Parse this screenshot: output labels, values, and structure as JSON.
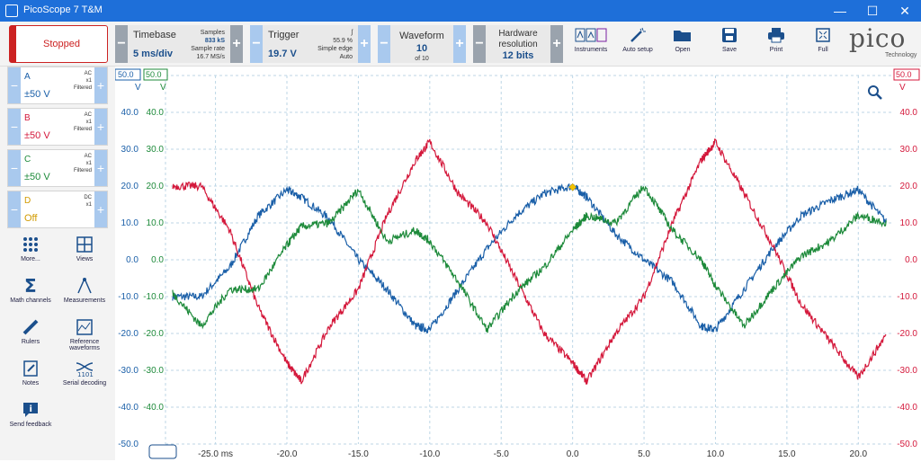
{
  "window": {
    "title": "PicoScope 7 T&M"
  },
  "toolbar": {
    "status_button": "Stopped",
    "timebase": {
      "label": "Timebase",
      "value": "5 ms/div",
      "samples_label": "Samples",
      "samples": "833 kS",
      "rate_label": "Sample rate",
      "rate": "16.7 MS/s"
    },
    "trigger": {
      "label": "Trigger",
      "value": "19.7 V",
      "percent": "55.9 %",
      "mode": "Simple edge",
      "type": "Auto"
    },
    "waveform": {
      "label": "Waveform",
      "value": "10",
      "of": "of 10"
    },
    "resolution": {
      "label": "Hardware resolution",
      "value": "12 bits"
    },
    "tools": [
      {
        "name": "instruments",
        "label": "Instruments"
      },
      {
        "name": "auto-setup",
        "label": "Auto setup"
      },
      {
        "name": "open",
        "label": "Open"
      },
      {
        "name": "save",
        "label": "Save"
      },
      {
        "name": "print",
        "label": "Print"
      },
      {
        "name": "full",
        "label": "Full"
      }
    ],
    "logo": "pico",
    "logo_sub": "Technology"
  },
  "channels": [
    {
      "name": "A",
      "coupling": "AC",
      "probe": "x1",
      "filter": "Filtered",
      "range": "±50 V",
      "color": "#1a5fa8"
    },
    {
      "name": "B",
      "coupling": "AC",
      "probe": "x1",
      "filter": "Filtered",
      "range": "±50 V",
      "color": "#d4183b"
    },
    {
      "name": "C",
      "coupling": "AC",
      "probe": "x1",
      "filter": "Filtered",
      "range": "±50 V",
      "color": "#1d8a3a"
    },
    {
      "name": "D",
      "coupling": "DC",
      "probe": "x1",
      "filter": "",
      "range": "Off",
      "color": "#d19a00"
    }
  ],
  "side_tools": [
    {
      "name": "more",
      "label": "More..."
    },
    {
      "name": "views",
      "label": "Views"
    },
    {
      "name": "math-channels",
      "label": "Math channels"
    },
    {
      "name": "measurements",
      "label": "Measurements"
    },
    {
      "name": "rulers",
      "label": "Rulers"
    },
    {
      "name": "reference-waveforms",
      "label": "Reference waveforms"
    },
    {
      "name": "notes",
      "label": "Notes"
    },
    {
      "name": "serial-decoding",
      "label": "Serial decoding"
    },
    {
      "name": "send-feedback",
      "label": "Send feedback"
    }
  ],
  "chart_data": {
    "type": "line",
    "x_unit_label": "ms",
    "x_ticks": [
      "-25.0 ms",
      "-20.0",
      "-15.0",
      "-10.0",
      "-5.0",
      "0.0",
      "5.0",
      "10.0",
      "15.0",
      "20.0"
    ],
    "x_tick_values": [
      -25,
      -20,
      -15,
      -10,
      -5,
      0,
      5,
      10,
      15,
      20
    ],
    "xlim": [
      -28.5,
      22.5
    ],
    "ylim": [
      -50,
      50
    ],
    "y_ticks_A": [
      "50.0",
      "40.0",
      "30.0",
      "20.0",
      "10.0",
      "0.0",
      "-10.0",
      "-20.0",
      "-30.0",
      "-40.0",
      "-50.0"
    ],
    "y_ticks_C": [
      "50.0",
      "40.0",
      "30.0",
      "20.0",
      "10.0",
      "0.0",
      "-10.0",
      "-20.0",
      "-30.0",
      "-40.0"
    ],
    "y_ticks_B": [
      "50.0",
      "40.0",
      "30.0",
      "20.0",
      "10.0",
      "0.0",
      "-10.0",
      "-20.0",
      "-30.0",
      "-40.0",
      "-50.0"
    ],
    "axis_unit": "V",
    "grid": true,
    "trigger_point": {
      "x": 0.0,
      "y": 19.7
    },
    "series": [
      {
        "name": "A",
        "color": "#1a5fa8",
        "x": [
          -28,
          -26,
          -24,
          -22,
          -20,
          -19,
          -17,
          -15,
          -13,
          -11,
          -10,
          -8,
          -6,
          -4,
          -2,
          0,
          1,
          3,
          5,
          7,
          9,
          10,
          12,
          14,
          16,
          18,
          20,
          22
        ],
        "y": [
          -10,
          -10,
          -2,
          12,
          19,
          17,
          11,
          0,
          -8,
          -18,
          -19,
          -8,
          3,
          12,
          18,
          20,
          17,
          7,
          0,
          -6,
          -18,
          -19,
          -8,
          3,
          12,
          16,
          19,
          10
        ]
      },
      {
        "name": "B",
        "color": "#d4183b",
        "x": [
          -28,
          -26,
          -24,
          -22,
          -20,
          -19,
          -17,
          -15,
          -13,
          -11,
          -10,
          -8,
          -6,
          -4,
          -2,
          0,
          1,
          3,
          5,
          7,
          9,
          10,
          12,
          14,
          16,
          18,
          20,
          22
        ],
        "y": [
          20,
          20,
          8,
          -13,
          -28,
          -33,
          -18,
          -8,
          12,
          27,
          32,
          18,
          10,
          -5,
          -20,
          -28,
          -33,
          -20,
          -10,
          10,
          27,
          32,
          18,
          4,
          -12,
          -22,
          -32,
          -20
        ]
      },
      {
        "name": "C",
        "color": "#1d8a3a",
        "x": [
          -28,
          -26,
          -24,
          -22,
          -20,
          -19,
          -17,
          -15,
          -13,
          -11,
          -10,
          -8,
          -6,
          -4,
          -2,
          0,
          1,
          3,
          5,
          7,
          9,
          10,
          12,
          14,
          16,
          18,
          20,
          22
        ],
        "y": [
          -9,
          -18,
          -8,
          -8,
          4,
          9,
          10,
          19,
          5,
          8,
          5,
          -6,
          -19,
          -9,
          -2,
          8,
          12,
          10,
          20,
          8,
          0,
          -7,
          -18,
          -8,
          1,
          5,
          12,
          10
        ]
      }
    ]
  }
}
